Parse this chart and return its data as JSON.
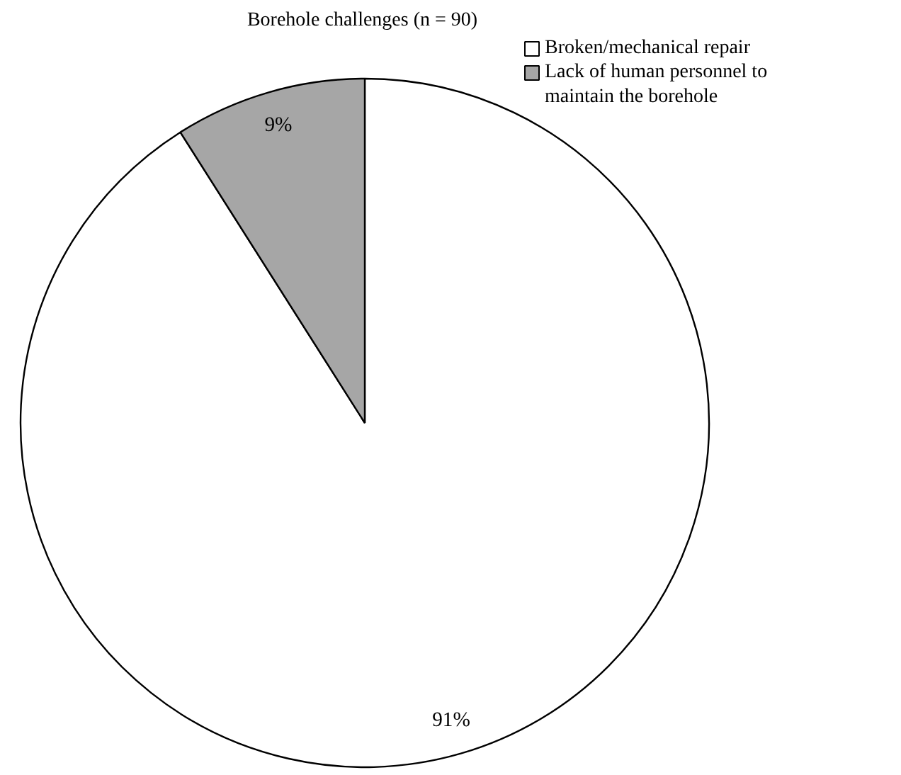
{
  "chart_data": {
    "type": "pie",
    "title": "Borehole challenges (n =  90)",
    "categories": [
      "Broken/mechanical repair",
      "Lack of human personnel to maintain the borehole"
    ],
    "values": [
      91,
      9
    ],
    "colors": [
      "#ffffff",
      "#a6a6a6"
    ],
    "value_labels": [
      "91%",
      "9%"
    ],
    "legend": "top right"
  }
}
